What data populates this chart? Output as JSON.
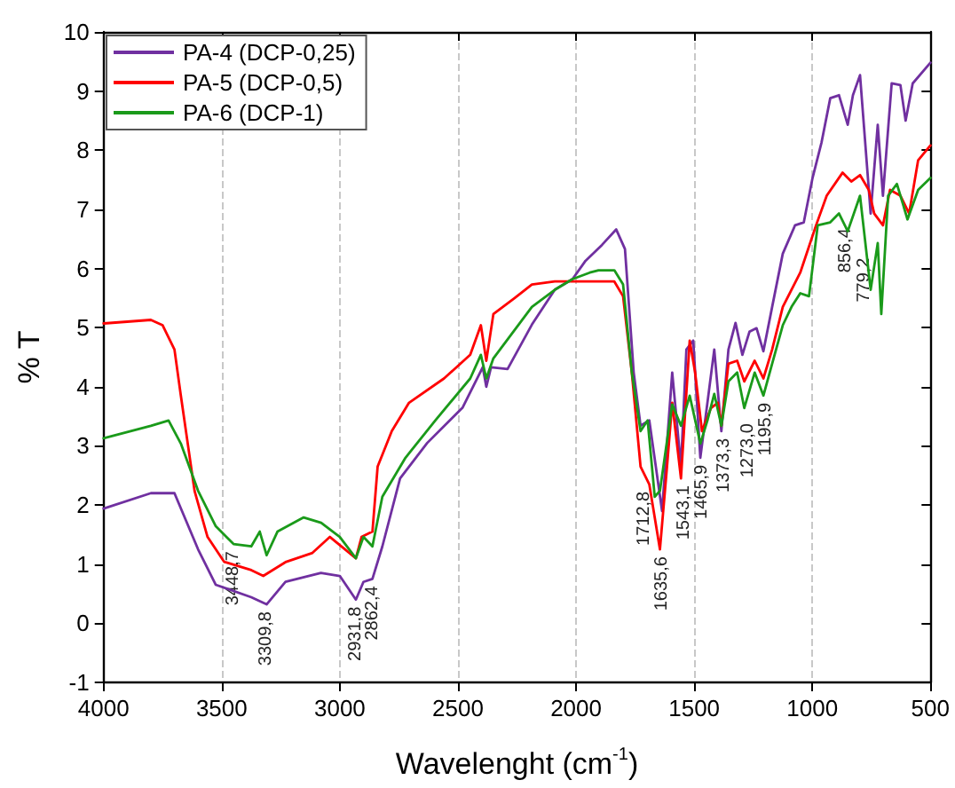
{
  "chart_data": {
    "type": "line",
    "xlabel": "Wavelenght (cm$^{-1}$)",
    "ylabel": "% T",
    "xlim": [
      4000,
      500
    ],
    "xticks": [
      4000,
      3500,
      3000,
      2500,
      2000,
      1500,
      1000,
      500
    ],
    "ylim": [
      -1,
      10
    ],
    "yticks": [
      -1,
      0,
      1,
      2,
      3,
      4,
      5,
      6,
      7,
      8,
      9,
      10
    ],
    "grid": "x",
    "legend": "top left",
    "marker": "none",
    "line_style": "solid",
    "series": [
      {
        "name": "PA-4 (DCP-0,25)",
        "color": "#7030a0",
        "x": [
          4000,
          3800,
          3700,
          3600,
          3525,
          3375,
          3310,
          3230,
          3080,
          3000,
          2932,
          2900,
          2862,
          2820,
          2745,
          2630,
          2480,
          2395,
          2380,
          2360,
          2290,
          2187,
          2090,
          2015,
          1960,
          1890,
          1830,
          1793,
          1756,
          1727,
          1690,
          1636,
          1593,
          1556,
          1533,
          1504,
          1474,
          1444,
          1415,
          1385,
          1355,
          1325,
          1296,
          1266,
          1236,
          1207,
          1170,
          1125,
          1073,
          1036,
          999,
          961,
          924,
          887,
          850,
          828,
          798,
          753,
          723,
          701,
          664,
          627,
          605,
          575,
          500
        ],
        "values": [
          1.94,
          2.2,
          2.2,
          1.25,
          0.65,
          0.44,
          0.32,
          0.7,
          0.85,
          0.8,
          0.4,
          0.7,
          0.75,
          1.3,
          2.45,
          3.05,
          3.65,
          4.33,
          4.0,
          4.33,
          4.3,
          5.05,
          5.64,
          5.82,
          6.13,
          6.4,
          6.66,
          6.33,
          4.24,
          3.34,
          3.43,
          1.9,
          4.24,
          2.65,
          4.63,
          4.78,
          2.8,
          3.73,
          4.63,
          3.25,
          4.63,
          5.08,
          4.54,
          4.93,
          4.99,
          4.6,
          5.35,
          6.25,
          6.73,
          6.78,
          7.53,
          8.13,
          8.88,
          8.93,
          8.43,
          8.93,
          9.27,
          6.93,
          8.43,
          7.23,
          9.13,
          9.1,
          8.5,
          9.13,
          9.48
        ]
      },
      {
        "name": "PA-5 (DCP-0,5)",
        "color": "#ff0000",
        "x": [
          4000,
          3800,
          3750,
          3700,
          3673,
          3615,
          3560,
          3490,
          3375,
          3324,
          3227,
          3116,
          3042,
          2932,
          2908,
          2862,
          2840,
          2780,
          2707,
          2559,
          2448,
          2403,
          2380,
          2350,
          2260,
          2187,
          2090,
          1838,
          1801,
          1764,
          1727,
          1690,
          1645,
          1615,
          1593,
          1556,
          1519,
          1496,
          1467,
          1429,
          1400,
          1385,
          1355,
          1318,
          1288,
          1244,
          1207,
          1170,
          1125,
          1051,
          984,
          939,
          872,
          835,
          798,
          761,
          738,
          701,
          671,
          627,
          590,
          552,
          500
        ],
        "values": [
          5.07,
          5.13,
          5.04,
          4.63,
          3.85,
          2.24,
          1.46,
          1.04,
          0.9,
          0.8,
          1.04,
          1.19,
          1.46,
          1.1,
          1.46,
          1.55,
          2.65,
          3.25,
          3.73,
          4.14,
          4.54,
          5.04,
          4.44,
          5.23,
          5.5,
          5.73,
          5.78,
          5.78,
          5.53,
          4.24,
          2.65,
          2.35,
          1.25,
          2.65,
          3.73,
          2.45,
          4.78,
          4.24,
          3.25,
          3.64,
          3.73,
          3.34,
          4.39,
          4.44,
          4.09,
          4.44,
          4.14,
          4.63,
          5.35,
          5.93,
          6.73,
          7.23,
          7.62,
          7.47,
          7.58,
          7.33,
          6.93,
          6.73,
          7.33,
          7.23,
          6.93,
          7.83,
          8.08
        ]
      },
      {
        "name": "PA-6 (DCP-1)",
        "color": "#1a9a1a",
        "x": [
          4000,
          3800,
          3725,
          3673,
          3600,
          3525,
          3450,
          3375,
          3339,
          3310,
          3264,
          3153,
          3079,
          3000,
          2932,
          2900,
          2862,
          2820,
          2722,
          2596,
          2448,
          2403,
          2380,
          2350,
          2187,
          2090,
          2015,
          1942,
          1905,
          1838,
          1801,
          1764,
          1727,
          1697,
          1667,
          1645,
          1593,
          1556,
          1519,
          1474,
          1444,
          1415,
          1385,
          1355,
          1318,
          1288,
          1244,
          1207,
          1170,
          1125,
          1088,
          1051,
          1014,
          977,
          924,
          887,
          850,
          798,
          753,
          723,
          708,
          679,
          642,
          597,
          552,
          500
        ],
        "values": [
          3.13,
          3.34,
          3.43,
          3.04,
          2.24,
          1.64,
          1.34,
          1.3,
          1.55,
          1.15,
          1.55,
          1.79,
          1.7,
          1.46,
          1.1,
          1.46,
          1.3,
          2.14,
          2.8,
          3.43,
          4.14,
          4.54,
          4.14,
          4.48,
          5.35,
          5.64,
          5.82,
          5.93,
          5.97,
          5.97,
          5.73,
          4.24,
          3.25,
          3.43,
          2.14,
          2.24,
          3.7,
          3.34,
          3.85,
          3.04,
          3.43,
          3.88,
          3.34,
          4.09,
          4.24,
          3.64,
          4.24,
          3.85,
          4.39,
          5.04,
          5.35,
          5.58,
          5.53,
          6.73,
          6.78,
          6.93,
          6.63,
          7.23,
          5.64,
          6.43,
          5.23,
          7.23,
          7.43,
          6.83,
          7.33,
          7.53
        ]
      }
    ],
    "annotations": [
      {
        "text": "3448,7",
        "x": 3448.7,
        "y": 1.34
      },
      {
        "text": "3309,8",
        "x": 3309.8,
        "y": 0.32
      },
      {
        "text": "2931,8",
        "x": 2931.8,
        "y": 0.4
      },
      {
        "text": "2862,4",
        "x": 2862.4,
        "y": 0.75
      },
      {
        "text": "1712,8",
        "x": 1712.8,
        "y": 2.35
      },
      {
        "text": "1635,6",
        "x": 1635.6,
        "y": 1.25
      },
      {
        "text": "1543,1",
        "x": 1543.1,
        "y": 2.45
      },
      {
        "text": "1465,9",
        "x": 1465.9,
        "y": 2.8
      },
      {
        "text": "1373,3",
        "x": 1373.3,
        "y": 3.25
      },
      {
        "text": "1273,0",
        "x": 1273.0,
        "y": 3.5
      },
      {
        "text": "1195,9",
        "x": 1195.9,
        "y": 3.85
      },
      {
        "text": "856,4",
        "x": 856.4,
        "y": 6.8
      },
      {
        "text": "779,2",
        "x": 779.2,
        "y": 6.3
      }
    ]
  }
}
